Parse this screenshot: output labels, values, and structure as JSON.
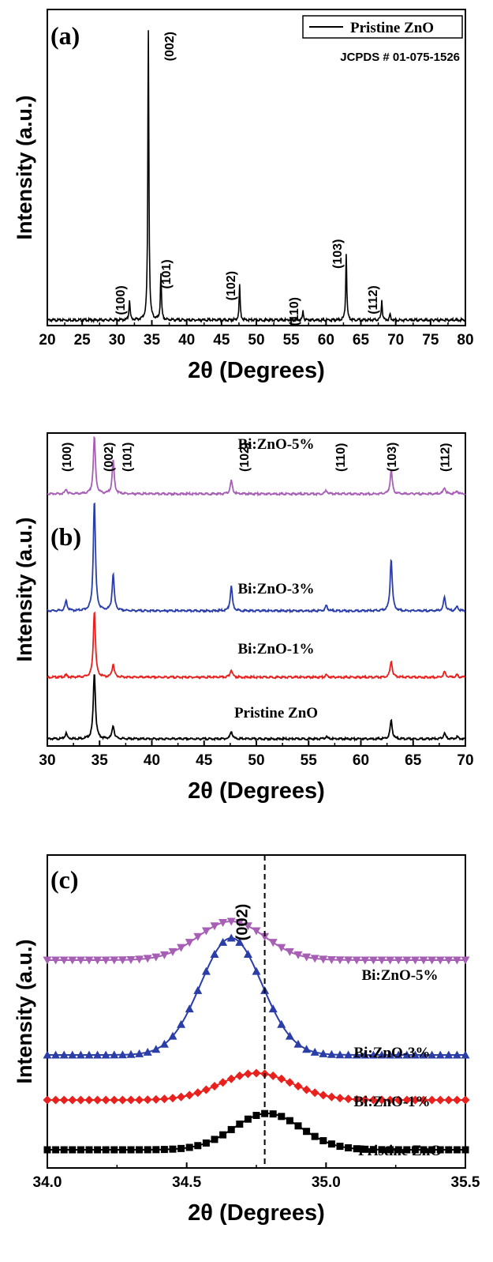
{
  "chart_data": [
    {
      "type": "line",
      "panel_label": "(a)",
      "xlabel": "2θ (Degrees)",
      "ylabel": "Intensity (a.u.)",
      "xlim": [
        20,
        80
      ],
      "xticks": [
        "20",
        "25",
        "30",
        "35",
        "40",
        "45",
        "50",
        "55",
        "60",
        "65",
        "70",
        "75",
        "80"
      ],
      "legend": "Pristine ZnO",
      "reference": "JCPDS # 01-075-1526",
      "color": "#000000",
      "peaks": [
        {
          "x": 31.8,
          "height": 0.07,
          "hkl": "(100)"
        },
        {
          "x": 34.5,
          "height": 1.0,
          "hkl": "(002)"
        },
        {
          "x": 36.3,
          "height": 0.16,
          "hkl": "(101)"
        },
        {
          "x": 47.6,
          "height": 0.12,
          "hkl": "(102)"
        },
        {
          "x": 56.7,
          "height": 0.03,
          "hkl": "(110)"
        },
        {
          "x": 62.9,
          "height": 0.23,
          "hkl": "(103)"
        },
        {
          "x": 68.0,
          "height": 0.07,
          "hkl": "(112)"
        },
        {
          "x": 69.2,
          "height": 0.02,
          "hkl": ""
        }
      ]
    },
    {
      "type": "line",
      "panel_label": "(b)",
      "xlabel": "2θ (Degrees)",
      "ylabel": "Intensity (a.u.)",
      "xlim": [
        30,
        70
      ],
      "xticks": [
        "30",
        "35",
        "40",
        "45",
        "50",
        "55",
        "60",
        "65",
        "70"
      ],
      "hkl_labels": [
        {
          "x": 31.8,
          "text": "(100)"
        },
        {
          "x": 35.8,
          "text": "(002)"
        },
        {
          "x": 37.6,
          "text": "(101)"
        },
        {
          "x": 48.8,
          "text": "(102)"
        },
        {
          "x": 58.0,
          "text": "(110)"
        },
        {
          "x": 62.9,
          "text": "(103)"
        },
        {
          "x": 68.0,
          "text": "(112)"
        }
      ],
      "series": [
        {
          "name": "Pristine ZnO",
          "color": "#000000",
          "peaks": [
            [
              31.8,
              0.05
            ],
            [
              34.5,
              0.6
            ],
            [
              36.3,
              0.12
            ],
            [
              47.6,
              0.07
            ],
            [
              56.7,
              0.02
            ],
            [
              62.9,
              0.17
            ],
            [
              68.0,
              0.05
            ],
            [
              69.2,
              0.02
            ]
          ]
        },
        {
          "name": "Bi:ZnO-1%",
          "color": "#e8211e",
          "peaks": [
            [
              31.8,
              0.02
            ],
            [
              34.5,
              0.6
            ],
            [
              36.3,
              0.12
            ],
            [
              47.6,
              0.07
            ],
            [
              56.7,
              0.02
            ],
            [
              62.9,
              0.15
            ],
            [
              68.0,
              0.05
            ],
            [
              69.2,
              0.02
            ]
          ]
        },
        {
          "name": "Bi:ZnO-3%",
          "color": "#2b3ea8",
          "peaks": [
            [
              31.8,
              0.09
            ],
            [
              34.5,
              1.0
            ],
            [
              36.3,
              0.33
            ],
            [
              47.6,
              0.22
            ],
            [
              56.7,
              0.05
            ],
            [
              62.9,
              0.47
            ],
            [
              68.0,
              0.12
            ],
            [
              69.2,
              0.04
            ]
          ]
        },
        {
          "name": "Bi:ZnO-5%",
          "color": "#a65fb5",
          "peaks": [
            [
              31.8,
              0.05
            ],
            [
              34.5,
              0.6
            ],
            [
              36.3,
              0.35
            ],
            [
              47.6,
              0.14
            ],
            [
              56.7,
              0.04
            ],
            [
              62.9,
              0.25
            ],
            [
              68.0,
              0.07
            ],
            [
              69.2,
              0.03
            ]
          ]
        }
      ]
    },
    {
      "type": "line",
      "panel_label": "(c)",
      "xlabel": "2θ (Degrees)",
      "ylabel": "Intensity (a.u.)",
      "xlim": [
        34.0,
        35.5
      ],
      "xticks": [
        "34.0",
        "34.5",
        "35.0",
        "35.5"
      ],
      "peak_label": "(002)",
      "reference_line_x": 34.78,
      "series": [
        {
          "name": "Pristine ZnO",
          "color": "#000000",
          "marker": "square",
          "center": 34.79,
          "sigma": 0.12,
          "height": 0.46
        },
        {
          "name": "Bi:ZnO-1%",
          "color": "#e8211e",
          "marker": "diamond",
          "center": 34.75,
          "sigma": 0.13,
          "height": 0.34
        },
        {
          "name": "Bi:ZnO-3%",
          "color": "#2b3ea8",
          "marker": "triangle-up",
          "center": 34.66,
          "sigma": 0.11,
          "height": 1.0
        },
        {
          "name": "Bi:ZnO-5%",
          "color": "#a65fb5",
          "marker": "triangle-down",
          "center": 34.66,
          "sigma": 0.12,
          "height": 0.49
        }
      ]
    }
  ]
}
